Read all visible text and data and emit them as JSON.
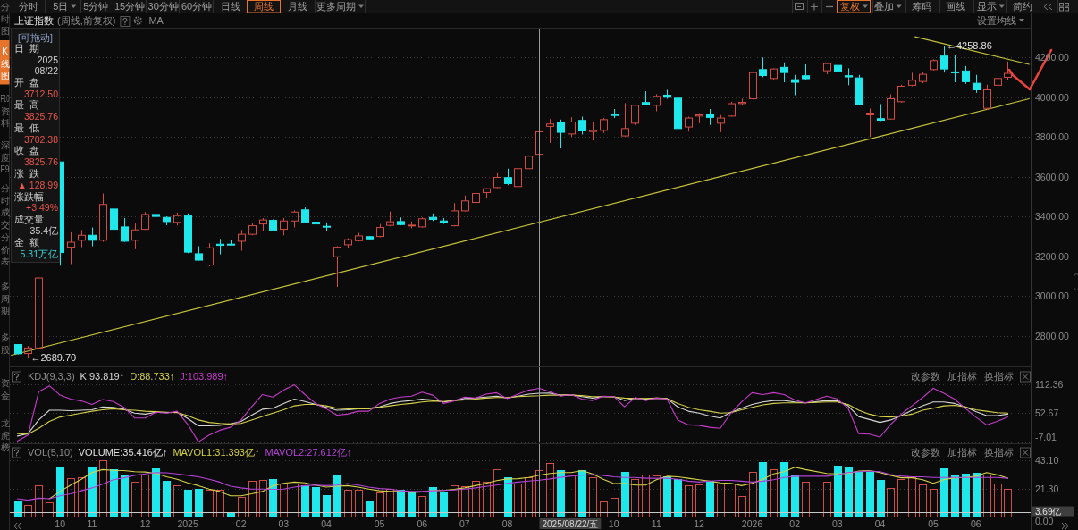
{
  "chart_data": [
    {
      "type": "candlestick",
      "title": "上证指数",
      "subtitle": "(周线,前复权)",
      "x": [
        "2024-09-13",
        "2024-09-20",
        "2024-09-27",
        "2024-10-11",
        "2024-10-18",
        "2024-10-25",
        "2024-11-01",
        "2024-11-08",
        "2024-11-15",
        "2024-11-22",
        "2024-11-29",
        "2024-12-06",
        "2024-12-13",
        "2024-12-20",
        "2024-12-27",
        "2025-01-03",
        "2025-01-10",
        "2025-01-17",
        "2025-01-24",
        "2025-01-31",
        "2025-02-07",
        "2025-02-14",
        "2025-02-21",
        "2025-02-28",
        "2025-03-07",
        "2025-03-14",
        "2025-03-21",
        "2025-03-28",
        "2025-04-04",
        "2025-04-11",
        "2025-04-18",
        "2025-04-25",
        "2025-05-02",
        "2025-05-09",
        "2025-05-16",
        "2025-05-23",
        "2025-05-30",
        "2025-06-06",
        "2025-06-13",
        "2025-06-20",
        "2025-06-27",
        "2025-07-04",
        "2025-07-11",
        "2025-07-18",
        "2025-07-25",
        "2025-08-01",
        "2025-08-08",
        "2025-08-15",
        "2025-08-22",
        "2025-08-29",
        "2025-09-05",
        "2025-09-12",
        "2025-09-19",
        "2025-09-26",
        "2025-10-03",
        "2025-10-10",
        "2025-10-17",
        "2025-10-24",
        "2025-10-31",
        "2025-11-07",
        "2025-11-14",
        "2025-11-21",
        "2025-11-28",
        "2025-12-05",
        "2025-12-12",
        "2025-12-19",
        "2025-12-26",
        "2026-01-02",
        "2026-01-09",
        "2026-01-16",
        "2026-01-23",
        "2026-01-30",
        "2026-02-06",
        "2026-02-13",
        "2026-02-27",
        "2026-03-06",
        "2026-03-13",
        "2026-03-20",
        "2026-03-27",
        "2026-04-03",
        "2026-04-10",
        "2026-04-17",
        "2026-04-24",
        "2026-05-01",
        "2026-05-08",
        "2026-05-15",
        "2026-05-22",
        "2026-05-29",
        "2026-06-05",
        "2026-06-12",
        "2026-06-19",
        "2026-06-26"
      ],
      "xlim": [
        "2024-09-08",
        "2026-07-11"
      ],
      "ylim": [
        2645,
        4345
      ],
      "yticks": [
        {
          "value": 4200,
          "label": "4200.00"
        },
        {
          "value": 4000,
          "label": "4000.00"
        },
        {
          "value": 3800,
          "label": "3800.00"
        },
        {
          "value": 3600,
          "label": "3600.00"
        },
        {
          "value": 3400,
          "label": "3400.00"
        },
        {
          "value": 3200,
          "label": "3200.00"
        },
        {
          "value": 3000,
          "label": "3000.00"
        },
        {
          "value": 2800,
          "label": "2800.00"
        }
      ],
      "tick_labels": "y",
      "grid": "y",
      "ohlc": [
        [
          2755,
          2757,
          2705,
          2709
        ],
        [
          2710,
          2748,
          2689.7,
          2738
        ],
        [
          2738,
          3092,
          2730,
          3090
        ],
        [
          3674,
          3674,
          3152,
          3218
        ],
        [
          3245,
          3320,
          3160,
          3270
        ],
        [
          3280,
          3332,
          3245,
          3305
        ],
        [
          3305,
          3344,
          3250,
          3280
        ],
        [
          3280,
          3515,
          3272,
          3460
        ],
        [
          3437,
          3497,
          3330,
          3335
        ],
        [
          3347,
          3392,
          3272,
          3275
        ],
        [
          3280,
          3365,
          3235,
          3332
        ],
        [
          3335,
          3422,
          3332,
          3410
        ],
        [
          3410,
          3502,
          3397,
          3400
        ],
        [
          3395,
          3400,
          3355,
          3374
        ],
        [
          3370,
          3419,
          3355,
          3404
        ],
        [
          3404,
          3415,
          3215,
          3220
        ],
        [
          3212,
          3250,
          3178,
          3180
        ],
        [
          3155,
          3265,
          3149,
          3242
        ],
        [
          3260,
          3287,
          3209,
          3254
        ],
        [
          3259,
          3280,
          3254,
          3257
        ],
        [
          3275,
          3332,
          3227,
          3310
        ],
        [
          3310,
          3365,
          3305,
          3353
        ],
        [
          3362,
          3392,
          3325,
          3382
        ],
        [
          3380,
          3385,
          3329,
          3330
        ],
        [
          3335,
          3392,
          3305,
          3377
        ],
        [
          3377,
          3430,
          3344,
          3422
        ],
        [
          3433,
          3445,
          3367,
          3370
        ],
        [
          3371,
          3392,
          3350,
          3362
        ],
        [
          3350,
          3370,
          3328,
          3346
        ],
        [
          3197,
          3250,
          3045,
          3245
        ],
        [
          3257,
          3290,
          3242,
          3283
        ],
        [
          3278,
          3317,
          3275,
          3302
        ],
        [
          3298,
          3302,
          3283,
          3287
        ],
        [
          3299,
          3362,
          3295,
          3344
        ],
        [
          3355,
          3425,
          3350,
          3373
        ],
        [
          3374,
          3395,
          3355,
          3359
        ],
        [
          3353,
          3374,
          3340,
          3355
        ],
        [
          3347,
          3395,
          3344,
          3388
        ],
        [
          3395,
          3415,
          3377,
          3385
        ],
        [
          3377,
          3392,
          3362,
          3368
        ],
        [
          3353,
          3467,
          3350,
          3428
        ],
        [
          3428,
          3505,
          3425,
          3478
        ],
        [
          3470,
          3560,
          3467,
          3515
        ],
        [
          3520,
          3542,
          3490,
          3539
        ],
        [
          3545,
          3617,
          3542,
          3596
        ],
        [
          3595,
          3640,
          3557,
          3565
        ],
        [
          3550,
          3647,
          3547,
          3640
        ],
        [
          3640,
          3707,
          3640,
          3703
        ],
        [
          3712.5,
          3825.76,
          3702.38,
          3825.76
        ],
        [
          3853,
          3890,
          3770,
          3865
        ],
        [
          3875,
          3887,
          3742,
          3823
        ],
        [
          3815,
          3899,
          3800,
          3875
        ],
        [
          3883,
          3902,
          3812,
          3830
        ],
        [
          3827,
          3875,
          3782,
          3833
        ],
        [
          3833,
          3895,
          3820,
          3887
        ],
        [
          3913,
          3940,
          3895,
          3908
        ],
        [
          3805,
          3970,
          3802,
          3842
        ],
        [
          3869,
          3962,
          3860,
          3959
        ],
        [
          3973,
          4030,
          3959,
          3962
        ],
        [
          3959,
          4015,
          3929,
          4004
        ],
        [
          4010,
          4037,
          3992,
          4000
        ],
        [
          3995,
          3998,
          3839,
          3842
        ],
        [
          3850,
          3902,
          3827,
          3895
        ],
        [
          3905,
          3920,
          3869,
          3911
        ],
        [
          3914,
          3940,
          3860,
          3898
        ],
        [
          3869,
          3910,
          3824,
          3895
        ],
        [
          3905,
          3977,
          3902,
          3967
        ],
        [
          3968,
          3992,
          3959,
          3974
        ],
        [
          3992,
          4127,
          3989,
          4124
        ],
        [
          4139,
          4199,
          4100,
          4109
        ],
        [
          4094,
          4145,
          4085,
          4142
        ],
        [
          4150,
          4175,
          4075,
          4124
        ],
        [
          4088,
          4112,
          4010,
          4075
        ],
        [
          4108,
          4165,
          4085,
          4093
        ],
        [
          4133,
          4172,
          4115,
          4169
        ],
        [
          4160,
          4202,
          4060,
          4130
        ],
        [
          4108,
          4145,
          4060,
          4102
        ],
        [
          4097,
          4112,
          3962,
          3965
        ],
        [
          3911,
          3943,
          3800,
          3920
        ],
        [
          3892,
          3965,
          3880,
          3884
        ],
        [
          3890,
          4015,
          3887,
          3992
        ],
        [
          3977,
          4063,
          3973,
          4055
        ],
        [
          4060,
          4123,
          4055,
          4085
        ],
        [
          4079,
          4124,
          4070,
          4115
        ],
        [
          4139,
          4190,
          4135,
          4184
        ],
        [
          4207,
          4258.86,
          4124,
          4142
        ],
        [
          4127,
          4210,
          4075,
          4123
        ],
        [
          4132,
          4157,
          4067,
          4078
        ],
        [
          4070,
          4112,
          4022,
          4037
        ],
        [
          3944,
          4063,
          3935,
          4037
        ],
        [
          4060,
          4120,
          4052,
          4094
        ],
        [
          4100,
          4180,
          4085,
          4120
        ]
      ],
      "colors": [
        "#1ee8ec",
        "#d24c45",
        "#d24c45",
        "#1ee8ec",
        "#d24c45",
        "#d24c45",
        "#1ee8ec",
        "#d24c45",
        "#1ee8ec",
        "#1ee8ec",
        "#d24c45",
        "#d24c45",
        "#1ee8ec",
        "#1ee8ec",
        "#d24c45",
        "#1ee8ec",
        "#1ee8ec",
        "#d24c45",
        "#1ee8ec",
        "#1ee8ec",
        "#d24c45",
        "#d24c45",
        "#d24c45",
        "#1ee8ec",
        "#d24c45",
        "#d24c45",
        "#1ee8ec",
        "#1ee8ec",
        "#1ee8ec",
        "#d24c45",
        "#d24c45",
        "#d24c45",
        "#1ee8ec",
        "#d24c45",
        "#d24c45",
        "#1ee8ec",
        "#d24c45",
        "#d24c45",
        "#1ee8ec",
        "#1ee8ec",
        "#d24c45",
        "#d24c45",
        "#d24c45",
        "#d24c45",
        "#d24c45",
        "#1ee8ec",
        "#d24c45",
        "#d24c45",
        "#d24c45",
        "#d24c45",
        "#1ee8ec",
        "#d24c45",
        "#1ee8ec",
        "#d24c45",
        "#d24c45",
        "#1ee8ec",
        "#d24c45",
        "#d24c45",
        "#1ee8ec",
        "#d24c45",
        "#1ee8ec",
        "#1ee8ec",
        "#d24c45",
        "#d24c45",
        "#1ee8ec",
        "#d24c45",
        "#d24c45",
        "#d24c45",
        "#d24c45",
        "#1ee8ec",
        "#d24c45",
        "#1ee8ec",
        "#1ee8ec",
        "#1ee8ec",
        "#d24c45",
        "#1ee8ec",
        "#1ee8ec",
        "#1ee8ec",
        "#d24c45",
        "#1ee8ec",
        "#d24c45",
        "#d24c45",
        "#d24c45",
        "#d24c45",
        "#d24c45",
        "#1ee8ec",
        "#1ee8ec",
        "#1ee8ec",
        "#1ee8ec",
        "#d24c45",
        "#d24c45",
        "#d24c45"
      ],
      "series": [
        {
          "type": "line",
          "color": "#c8c43c",
          "x": [
            "2024-09-09",
            "2026-07-10"
          ],
          "values": [
            2701,
            3992
          ]
        },
        {
          "type": "line",
          "color": "#c8c43c",
          "x": [
            "2026-04-26",
            "2026-07-10"
          ],
          "values": [
            4304,
            4165
          ]
        }
      ],
      "ref_lines": [
        {
          "axis": "x",
          "value": "2025-08-22",
          "color": "#9a9a9a"
        }
      ],
      "annotations": [
        {
          "text": "←2689.70",
          "x": "2024-09-20",
          "y": 2689.7
        },
        {
          "text": "←4258.86",
          "x": "2026-05-15",
          "y": 4258.86
        },
        "分时",
        "5日",
        "5分钟",
        "15分钟",
        "30分钟",
        "60分钟",
        "日线",
        "周线",
        "月线",
        "更多周期",
        "复权",
        "叠加",
        "筹码",
        "画线",
        "显示",
        "简约",
        "MA",
        "设置均线",
        "[可拖动]",
        "日期",
        "2025",
        "08/22",
        "开盘",
        "3712.50",
        "最高",
        "3825.76",
        "最低",
        "3702.38",
        "收盘",
        "3825.76",
        "涨跌",
        "▲ 128.99",
        "涨跌幅",
        "+3.49%",
        "成交量",
        "35.4亿",
        "金额",
        "5.31万亿",
        "分时图",
        "K线图",
        "F10资料",
        "深度F9",
        "分时成交",
        "分价表",
        "多周期",
        "多股",
        "资金",
        "龙虎榜"
      ]
    },
    {
      "type": "line",
      "title": "KDJ(9,3,3)",
      "x": [
        "2024-09-13",
        "2024-09-20",
        "2024-09-27",
        "2024-10-04",
        "2024-10-11",
        "2024-10-18",
        "2024-10-25",
        "2024-11-01",
        "2024-11-08",
        "2024-11-15",
        "2024-11-22",
        "2024-11-29",
        "2024-12-06",
        "2024-12-13",
        "2024-12-20",
        "2024-12-27",
        "2025-01-03",
        "2025-01-10",
        "2025-01-17",
        "2025-01-24",
        "2025-01-31",
        "2025-02-07",
        "2025-02-14",
        "2025-02-21",
        "2025-02-28",
        "2025-03-07",
        "2025-03-14",
        "2025-03-21",
        "2025-03-28",
        "2025-04-04",
        "2025-04-11",
        "2025-04-18",
        "2025-04-25",
        "2025-05-02",
        "2025-05-09",
        "2025-05-16",
        "2025-05-23",
        "2025-05-30",
        "2025-06-06",
        "2025-06-13",
        "2025-06-20",
        "2025-06-27",
        "2025-07-04",
        "2025-07-11",
        "2025-07-18",
        "2025-07-25",
        "2025-08-01",
        "2025-08-08",
        "2025-08-15",
        "2025-08-22",
        "2025-08-29",
        "2025-09-05",
        "2025-09-12",
        "2025-09-19",
        "2025-09-26",
        "2025-10-03",
        "2025-10-10",
        "2025-10-17",
        "2025-10-24",
        "2025-10-31",
        "2025-11-07",
        "2025-11-14",
        "2025-11-21",
        "2025-11-28",
        "2025-12-05",
        "2025-12-12",
        "2025-12-19",
        "2025-12-26",
        "2026-01-02",
        "2026-01-09",
        "2026-01-16",
        "2026-01-23",
        "2026-01-30",
        "2026-02-06",
        "2026-02-13",
        "2026-02-27",
        "2026-03-06",
        "2026-03-13",
        "2026-03-20",
        "2026-03-27",
        "2026-04-03",
        "2026-04-10",
        "2026-04-17",
        "2026-04-24",
        "2026-05-01",
        "2026-05-08",
        "2026-05-15",
        "2026-05-22",
        "2026-05-29",
        "2026-06-05",
        "2026-06-12",
        "2026-06-19",
        "2026-06-26"
      ],
      "xlim": [
        "2024-09-08",
        "2026-07-11"
      ],
      "ylim": [
        -7.01,
        147
      ],
      "yticks": [
        112.36,
        52.67,
        -7.01
      ],
      "tick_labels": "y",
      "grid": "y",
      "legend": "top left",
      "series": [
        {
          "name": "K:93.819↑",
          "color": "#d8d8d8",
          "values": [
            6,
            11,
            39,
            59,
            59,
            58,
            59,
            60,
            66,
            65,
            61,
            53,
            51,
            55,
            54,
            55,
            42,
            27,
            27,
            28,
            31,
            36,
            49,
            61,
            63,
            73,
            82,
            77,
            71,
            65,
            59,
            60,
            62,
            63,
            66,
            73,
            77,
            79,
            82,
            80,
            76,
            79,
            83,
            84,
            86,
            88,
            84,
            88,
            92,
            93.819,
            94,
            90,
            91,
            87,
            84,
            87,
            87,
            79,
            84,
            82,
            84,
            83,
            66,
            57,
            53,
            47,
            43,
            55,
            63,
            71,
            76,
            79,
            79,
            76,
            74,
            79,
            78,
            68,
            46,
            40,
            34,
            39,
            48,
            59,
            68,
            76,
            76,
            73,
            66,
            56,
            48,
            48,
            51
          ]
        },
        {
          "name": "D:88.733↑",
          "color": "#d6d24a",
          "values": [
            11,
            10,
            22,
            36,
            45,
            49,
            53,
            57,
            60,
            62,
            60,
            59,
            57,
            56,
            55,
            54,
            48,
            39,
            34,
            32,
            31,
            32,
            39,
            46,
            53,
            60,
            68,
            71,
            71,
            68,
            63,
            62,
            62,
            62,
            65,
            68,
            71,
            73,
            76,
            78,
            77,
            79,
            80,
            82,
            84,
            85,
            85,
            87,
            88,
            88.733,
            90,
            90,
            90,
            89,
            87,
            87,
            86,
            84,
            83,
            83,
            84,
            83,
            73,
            65,
            60,
            57,
            53,
            54,
            60,
            65,
            70,
            73,
            74,
            74,
            74,
            76,
            76,
            71,
            59,
            51,
            46,
            45,
            47,
            51,
            59,
            63,
            68,
            69,
            66,
            60,
            57,
            54,
            53
          ]
        },
        {
          "name": "J:103.989↑",
          "color": "#c83ccc",
          "values": [
            -4,
            8,
            97,
            109,
            90,
            82,
            78,
            71,
            81,
            77,
            65,
            43,
            43,
            55,
            53,
            57,
            30,
            -6,
            8,
            18,
            24,
            39,
            66,
            91,
            86,
            100,
            111,
            91,
            73,
            62,
            49,
            51,
            57,
            57,
            73,
            82,
            86,
            88,
            96,
            90,
            73,
            78,
            86,
            84,
            92,
            95,
            83,
            92,
            100,
            103.989,
            97,
            88,
            91,
            82,
            79,
            88,
            87,
            66,
            85,
            79,
            84,
            82,
            39,
            29,
            28,
            24,
            22,
            53,
            76,
            95,
            91,
            95,
            91,
            80,
            74,
            88,
            82,
            63,
            11,
            10,
            4,
            30,
            51,
            68,
            85,
            104,
            94,
            82,
            63,
            45,
            29,
            36,
            45
          ]
        }
      ],
      "ref_lines": [
        {
          "axis": "x",
          "value": "2025-08-22",
          "color": "#9a9a9a"
        }
      ],
      "annotations": [
        "改参数",
        "加指标",
        "换指标"
      ]
    },
    {
      "type": "bar",
      "title": "VOL(5,10)",
      "x": [
        "2024-09-13",
        "2024-09-20",
        "2024-09-27",
        "2024-10-04",
        "2024-10-11",
        "2024-10-18",
        "2024-10-25",
        "2024-11-01",
        "2024-11-08",
        "2024-11-15",
        "2024-11-22",
        "2024-11-29",
        "2024-12-06",
        "2024-12-13",
        "2024-12-20",
        "2024-12-27",
        "2025-01-03",
        "2025-01-10",
        "2025-01-17",
        "2025-01-24",
        "2025-01-31",
        "2025-02-07",
        "2025-02-14",
        "2025-02-21",
        "2025-02-28",
        "2025-03-07",
        "2025-03-14",
        "2025-03-21",
        "2025-03-28",
        "2025-04-04",
        "2025-04-11",
        "2025-04-18",
        "2025-04-25",
        "2025-05-02",
        "2025-05-09",
        "2025-05-16",
        "2025-05-23",
        "2025-05-30",
        "2025-06-06",
        "2025-06-13",
        "2025-06-20",
        "2025-06-27",
        "2025-07-04",
        "2025-07-11",
        "2025-07-18",
        "2025-07-25",
        "2025-08-01",
        "2025-08-08",
        "2025-08-15",
        "2025-08-22",
        "2025-08-29",
        "2025-09-05",
        "2025-09-12",
        "2025-09-19",
        "2025-09-26",
        "2025-10-03",
        "2025-10-10",
        "2025-10-17",
        "2025-10-24",
        "2025-10-31",
        "2025-11-07",
        "2025-11-14",
        "2025-11-21",
        "2025-11-28",
        "2025-12-05",
        "2025-12-12",
        "2025-12-19",
        "2025-12-26",
        "2026-01-02",
        "2026-01-09",
        "2026-01-16",
        "2026-01-23",
        "2026-01-30",
        "2026-02-06",
        "2026-02-13",
        "2026-02-27",
        "2026-03-06",
        "2026-03-13",
        "2026-03-20",
        "2026-03-27",
        "2026-04-03",
        "2026-04-10",
        "2026-04-17",
        "2026-04-24",
        "2026-05-01",
        "2026-05-08",
        "2026-05-15",
        "2026-05-22",
        "2026-05-29",
        "2026-06-05",
        "2026-06-12",
        "2026-06-19",
        "2026-06-26"
      ],
      "xlim": [
        "2024-09-08",
        "2026-07-11"
      ],
      "ylim": [
        0,
        55
      ],
      "yticks": [
        {
          "value": 43.1,
          "label": "43.10"
        },
        {
          "value": 21.3,
          "label": "21.30"
        },
        {
          "value": 0,
          "label": "0.00"
        }
      ],
      "xticks": [
        {
          "value": "2024-10-11",
          "label": "10"
        },
        {
          "value": "2024-11-01",
          "label": "11"
        },
        {
          "value": "2024-12-06",
          "label": "12"
        },
        {
          "value": "2025-01-03",
          "label": "2025"
        },
        {
          "value": "2025-02-07",
          "label": "02"
        },
        {
          "value": "2025-03-07",
          "label": "03"
        },
        {
          "value": "2025-04-04",
          "label": "04"
        },
        {
          "value": "2025-05-09",
          "label": "05"
        },
        {
          "value": "2025-06-06",
          "label": "06"
        },
        {
          "value": "2025-07-04",
          "label": "07"
        },
        {
          "value": "2025-08-01",
          "label": "08"
        },
        {
          "value": "2025-10-10",
          "label": "10"
        },
        {
          "value": "2025-11-07",
          "label": "11"
        },
        {
          "value": "2025-12-05",
          "label": "12"
        },
        {
          "value": "2026-01-09",
          "label": "2026"
        },
        {
          "value": "2026-02-06",
          "label": "02"
        },
        {
          "value": "2026-03-06",
          "label": "03"
        },
        {
          "value": "2026-04-03",
          "label": "04"
        },
        {
          "value": "2026-05-08",
          "label": "05"
        },
        {
          "value": "2026-06-05",
          "label": "06"
        }
      ],
      "grid": "y",
      "legend": "top left",
      "series": [
        {
          "values": [
            12.5,
            8.5,
            23.5,
            10.7,
            37.9,
            29.1,
            30.2,
            37.2,
            43.0,
            35.7,
            31.1,
            26.4,
            31.9,
            36.8,
            27.3,
            24.0,
            20.7,
            20.9,
            20.7,
            20.2,
            3.2,
            14.7,
            26.9,
            28.0,
            28.4,
            25.1,
            25.1,
            24.0,
            22.2,
            16.5,
            31.1,
            20.7,
            20.2,
            12.0,
            18.0,
            21.3,
            20.2,
            18.0,
            15.4,
            22.4,
            19.1,
            24.0,
            23.1,
            26.9,
            26.2,
            36.1,
            30.2,
            25.3,
            30.2,
            35.416,
            40.6,
            35.0,
            31.7,
            35.4,
            30.2,
            11.6,
            14.3,
            33.9,
            28.4,
            31.9,
            31.3,
            30.8,
            28.8,
            23.5,
            24.4,
            26.9,
            25.1,
            25.1,
            15.8,
            33.9,
            41.2,
            35.7,
            41.7,
            31.9,
            26.4,
            26.4,
            39.0,
            37.7,
            33.9,
            34.1,
            28.0,
            22.0,
            28.4,
            30.2,
            24.6,
            20.9,
            36.8,
            31.9,
            32.8,
            33.0,
            31.7,
            25.3,
            20.9
          ],
          "colors": [
            "#1ee8ec",
            "#d24c45",
            "#d24c45",
            "#d24c45",
            "#1ee8ec",
            "#d24c45",
            "#d24c45",
            "#1ee8ec",
            "#d24c45",
            "#1ee8ec",
            "#1ee8ec",
            "#d24c45",
            "#d24c45",
            "#1ee8ec",
            "#1ee8ec",
            "#d24c45",
            "#1ee8ec",
            "#1ee8ec",
            "#d24c45",
            "#d24c45",
            "#1ee8ec",
            "#d24c45",
            "#d24c45",
            "#d24c45",
            "#1ee8ec",
            "#d24c45",
            "#d24c45",
            "#1ee8ec",
            "#1ee8ec",
            "#1ee8ec",
            "#1ee8ec",
            "#d24c45",
            "#d24c45",
            "#1ee8ec",
            "#d24c45",
            "#d24c45",
            "#1ee8ec",
            "#1ee8ec",
            "#d24c45",
            "#1ee8ec",
            "#1ee8ec",
            "#d24c45",
            "#d24c45",
            "#d24c45",
            "#d24c45",
            "#d24c45",
            "#1ee8ec",
            "#d24c45",
            "#d24c45",
            "#d24c45",
            "#d24c45",
            "#1ee8ec",
            "#d24c45",
            "#1ee8ec",
            "#d24c45",
            "#d24c45",
            "#d24c45",
            "#1ee8ec",
            "#d24c45",
            "#d24c45",
            "#d24c45",
            "#1ee8ec",
            "#1ee8ec",
            "#d24c45",
            "#d24c45",
            "#1ee8ec",
            "#d24c45",
            "#d24c45",
            "#d24c45",
            "#d24c45",
            "#1ee8ec",
            "#d24c45",
            "#1ee8ec",
            "#1ee8ec",
            "#d24c45",
            "#d24c45",
            "#1ee8ec",
            "#1ee8ec",
            "#1ee8ec",
            "#1ee8ec",
            "#1ee8ec",
            "#d24c45",
            "#d24c45",
            "#d24c45",
            "#d24c45",
            "#d24c45",
            "#1ee8ec",
            "#1ee8ec",
            "#1ee8ec",
            "#1ee8ec",
            "#d24c45",
            "#d24c45",
            "#d24c45"
          ]
        },
        {
          "name": "MAVOL1:31.393亿↑",
          "type": "line",
          "color": "#d6d24a",
          "values": [
            null,
            null,
            null,
            13.6,
            19.1,
            24.0,
            28.4,
            33.5,
            35.7,
            35.2,
            35.0,
            34.1,
            33.9,
            32.8,
            30.2,
            28.4,
            25.7,
            23.5,
            20.9,
            19.1,
            15.8,
            15.8,
            17.3,
            19.1,
            23.5,
            25.3,
            26.2,
            25.7,
            24.0,
            22.4,
            23.1,
            23.5,
            22.4,
            20.9,
            19.6,
            19.1,
            19.1,
            18.3,
            18.7,
            19.8,
            19.8,
            20.7,
            21.8,
            23.5,
            25.3,
            27.3,
            28.6,
            28.8,
            29.7,
            31.393,
            32.8,
            33.5,
            33.5,
            35.0,
            32.4,
            28.4,
            25.1,
            25.3,
            24.0,
            24.0,
            28.0,
            30.6,
            30.2,
            29.1,
            28.0,
            26.9,
            25.7,
            25.3,
            23.5,
            25.3,
            28.4,
            32.4,
            34.1,
            37.5,
            35.7,
            32.8,
            32.4,
            32.8,
            34.6,
            35.0,
            33.5,
            31.3,
            29.5,
            29.5,
            28.0,
            25.3,
            28.0,
            29.5,
            29.7,
            30.6,
            33.5,
            31.7,
            29.1
          ]
        },
        {
          "name": "MAVOL2:27.612亿↑",
          "type": "line",
          "color": "#b444d8",
          "values": [
            13.6,
            12.5,
            14.0,
            13.6,
            15.8,
            17.3,
            19.6,
            21.8,
            24.6,
            28.0,
            29.5,
            31.3,
            32.4,
            33.5,
            33.3,
            32.4,
            31.3,
            30.2,
            28.4,
            26.2,
            23.1,
            21.8,
            20.9,
            20.9,
            20.7,
            20.9,
            22.4,
            23.5,
            24.0,
            23.5,
            24.0,
            25.1,
            24.0,
            22.4,
            21.3,
            20.9,
            19.6,
            19.1,
            19.1,
            19.6,
            19.8,
            20.2,
            20.9,
            21.8,
            22.9,
            24.0,
            25.3,
            26.2,
            27.0,
            27.612,
            28.6,
            29.8,
            30.8,
            31.5,
            31.9,
            31.3,
            30.2,
            29.7,
            29.7,
            29.1,
            29.1,
            29.1,
            28.4,
            26.9,
            26.2,
            27.0,
            27.5,
            27.5,
            26.9,
            26.2,
            26.9,
            28.0,
            29.7,
            30.6,
            30.6,
            30.6,
            31.7,
            33.5,
            34.1,
            34.6,
            34.1,
            31.9,
            30.8,
            30.2,
            30.2,
            29.7,
            29.7,
            29.7,
            29.7,
            29.7,
            29.7,
            29.7,
            29.1
          ]
        }
      ],
      "ref_lines": [
        {
          "axis": "x",
          "value": "2025-08-22",
          "color": "#9a9a9a"
        },
        {
          "axis": "y",
          "value": 3.69,
          "color": "#c8c8c8"
        }
      ],
      "annotations": [
        {
          "text": "2025/08/22/五",
          "x": "2025-08-22",
          "y": 0
        },
        {
          "text": "3.69亿",
          "x": "2026-07-11",
          "y": 3.69
        },
        "VOLUME:35.416亿↑",
        "改参数",
        "加指标",
        "换指标"
      ]
    }
  ]
}
